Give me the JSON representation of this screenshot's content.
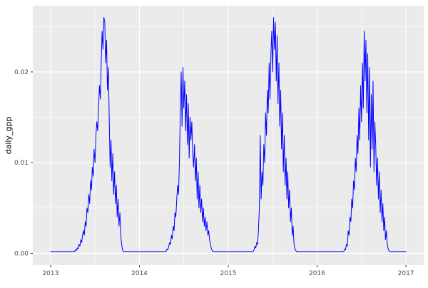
{
  "chart_data": {
    "type": "line",
    "title": "",
    "xlabel": "",
    "ylabel": "daily_gpp",
    "grid": true,
    "legend": "none",
    "xlim": [
      2012.8,
      2017.2
    ],
    "ylim": [
      -0.0013,
      0.0273
    ],
    "x_ticks": [
      2013,
      2014,
      2015,
      2016,
      2017
    ],
    "x_tick_labels": [
      "2013",
      "2014",
      "2015",
      "2016",
      "2017"
    ],
    "x_minor_ticks": [
      2013.5,
      2014.5,
      2015.5,
      2016.5
    ],
    "y_ticks": [
      0,
      0.01,
      0.02
    ],
    "y_tick_labels": [
      "0.00",
      "0.01",
      "0.02"
    ],
    "y_minor_ticks": [
      0.005,
      0.015,
      0.025
    ],
    "colors": {
      "panel_background": "#EBEBEB",
      "grid_major": "#FFFFFF",
      "grid_minor": "#FFFFFF",
      "line": "#0000FF",
      "tick_label": "#4D4D4D",
      "tick_mark": "#333333",
      "axis_title": "#000000"
    },
    "series": [
      {
        "name": "daily_gpp",
        "color": "#0000FF",
        "x_start": 2013.0,
        "x_step": 0.01,
        "y": [
          0.0002,
          0.0002,
          0.0002,
          0.0002,
          0.0002,
          0.0002,
          0.0002,
          0.0002,
          0.0002,
          0.0002,
          0.0002,
          0.0002,
          0.0002,
          0.0002,
          0.0002,
          0.0002,
          0.0002,
          0.0002,
          0.0002,
          0.0002,
          0.0002,
          0.0002,
          0.0002,
          0.0002,
          0.0002,
          0.0002,
          0.0002,
          0.0002,
          0.0004,
          0.0003,
          0.0006,
          0.0005,
          0.001,
          0.0008,
          0.0015,
          0.0012,
          0.002,
          0.0025,
          0.002,
          0.0035,
          0.003,
          0.005,
          0.0045,
          0.0065,
          0.0055,
          0.008,
          0.007,
          0.0095,
          0.0085,
          0.0115,
          0.01,
          0.013,
          0.0145,
          0.0135,
          0.016,
          0.0185,
          0.017,
          0.021,
          0.0245,
          0.0225,
          0.026,
          0.0255,
          0.021,
          0.0235,
          0.018,
          0.0205,
          0.015,
          0.0095,
          0.0125,
          0.008,
          0.011,
          0.0065,
          0.009,
          0.0055,
          0.0075,
          0.004,
          0.006,
          0.003,
          0.0045,
          0.002,
          0.001,
          0.0004,
          0.0002,
          0.0002,
          0.0002,
          0.0002,
          0.0002,
          0.0002,
          0.0002,
          0.0002,
          0.0002,
          0.0002,
          0.0002,
          0.0002,
          0.0002,
          0.0002,
          0.0002,
          0.0002,
          0.0002,
          0.0002,
          0.0002,
          0.0002,
          0.0002,
          0.0002,
          0.0002,
          0.0002,
          0.0002,
          0.0002,
          0.0002,
          0.0002,
          0.0002,
          0.0002,
          0.0002,
          0.0002,
          0.0002,
          0.0002,
          0.0002,
          0.0002,
          0.0002,
          0.0002,
          0.0002,
          0.0002,
          0.0002,
          0.0002,
          0.0002,
          0.0002,
          0.0002,
          0.0002,
          0.0002,
          0.0002,
          0.0002,
          0.0005,
          0.0004,
          0.0008,
          0.0012,
          0.001,
          0.002,
          0.0016,
          0.003,
          0.0025,
          0.0045,
          0.004,
          0.006,
          0.0075,
          0.0065,
          0.01,
          0.0155,
          0.02,
          0.014,
          0.0205,
          0.016,
          0.019,
          0.0135,
          0.0175,
          0.012,
          0.0165,
          0.0105,
          0.015,
          0.0125,
          0.0145,
          0.011,
          0.0095,
          0.012,
          0.008,
          0.0105,
          0.006,
          0.009,
          0.005,
          0.0075,
          0.0045,
          0.006,
          0.0035,
          0.005,
          0.003,
          0.004,
          0.0025,
          0.0035,
          0.002,
          0.0025,
          0.0015,
          0.001,
          0.0005,
          0.0003,
          0.0002,
          0.0002,
          0.0002,
          0.0002,
          0.0002,
          0.0002,
          0.0002,
          0.0002,
          0.0002,
          0.0002,
          0.0002,
          0.0002,
          0.0002,
          0.0002,
          0.0002,
          0.0002,
          0.0002,
          0.0002,
          0.0002,
          0.0002,
          0.0002,
          0.0002,
          0.0002,
          0.0002,
          0.0002,
          0.0002,
          0.0002,
          0.0002,
          0.0002,
          0.0002,
          0.0002,
          0.0002,
          0.0002,
          0.0002,
          0.0002,
          0.0002,
          0.0002,
          0.0002,
          0.0002,
          0.0002,
          0.0002,
          0.0002,
          0.0002,
          0.0002,
          0.0002,
          0.0002,
          0.0004,
          0.0008,
          0.0006,
          0.0012,
          0.001,
          0.0025,
          0.005,
          0.013,
          0.006,
          0.009,
          0.0075,
          0.012,
          0.01,
          0.0155,
          0.013,
          0.018,
          0.0155,
          0.021,
          0.017,
          0.022,
          0.0245,
          0.02,
          0.026,
          0.0225,
          0.0255,
          0.019,
          0.024,
          0.0165,
          0.021,
          0.014,
          0.018,
          0.0115,
          0.0155,
          0.009,
          0.013,
          0.0075,
          0.0105,
          0.006,
          0.009,
          0.005,
          0.007,
          0.0035,
          0.005,
          0.002,
          0.003,
          0.001,
          0.0005,
          0.0003,
          0.0002,
          0.0002,
          0.0002,
          0.0002,
          0.0002,
          0.0002,
          0.0002,
          0.0002,
          0.0002,
          0.0002,
          0.0002,
          0.0002,
          0.0002,
          0.0002,
          0.0002,
          0.0002,
          0.0002,
          0.0002,
          0.0002,
          0.0002,
          0.0002,
          0.0002,
          0.0002,
          0.0002,
          0.0002,
          0.0002,
          0.0002,
          0.0002,
          0.0002,
          0.0002,
          0.0002,
          0.0002,
          0.0002,
          0.0002,
          0.0002,
          0.0002,
          0.0002,
          0.0002,
          0.0002,
          0.0002,
          0.0002,
          0.0002,
          0.0002,
          0.0002,
          0.0002,
          0.0002,
          0.0002,
          0.0002,
          0.0002,
          0.0002,
          0.0002,
          0.0002,
          0.0002,
          0.0002,
          0.0005,
          0.0004,
          0.001,
          0.0008,
          0.0025,
          0.002,
          0.004,
          0.0035,
          0.006,
          0.005,
          0.008,
          0.007,
          0.0105,
          0.009,
          0.013,
          0.011,
          0.016,
          0.0125,
          0.0185,
          0.0145,
          0.021,
          0.016,
          0.0245,
          0.019,
          0.0235,
          0.0155,
          0.022,
          0.0125,
          0.0205,
          0.0095,
          0.0175,
          0.0115,
          0.019,
          0.009,
          0.0145,
          0.012,
          0.0075,
          0.0105,
          0.006,
          0.009,
          0.0045,
          0.007,
          0.0035,
          0.0055,
          0.0025,
          0.004,
          0.0015,
          0.0025,
          0.001,
          0.0005,
          0.0003,
          0.0002,
          0.0002,
          0.0002,
          0.0002,
          0.0002,
          0.0002,
          0.0002,
          0.0002,
          0.0002,
          0.0002,
          0.0002,
          0.0002,
          0.0002,
          0.0002,
          0.0002,
          0.0002,
          0.0002,
          0.0002,
          0.0002
        ]
      }
    ]
  }
}
